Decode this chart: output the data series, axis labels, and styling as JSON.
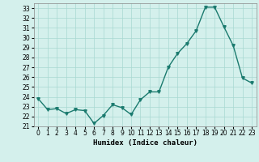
{
  "xlabel": "Humidex (Indice chaleur)",
  "x": [
    0,
    1,
    2,
    3,
    4,
    5,
    6,
    7,
    8,
    9,
    10,
    11,
    12,
    13,
    14,
    15,
    16,
    17,
    18,
    19,
    20,
    21,
    22,
    23
  ],
  "y": [
    23.8,
    22.7,
    22.8,
    22.3,
    22.7,
    22.6,
    21.3,
    22.1,
    23.2,
    22.9,
    22.2,
    23.7,
    24.5,
    24.5,
    27.0,
    28.4,
    29.4,
    30.7,
    33.1,
    33.1,
    31.1,
    29.2,
    25.9,
    25.4
  ],
  "line_color": "#1a7a6e",
  "marker": "v",
  "marker_size": 2.5,
  "bg_color": "#d4f0ec",
  "grid_color": "#a8d8d2",
  "ylim": [
    21,
    33.5
  ],
  "yticks": [
    21,
    22,
    23,
    24,
    25,
    26,
    27,
    28,
    29,
    30,
    31,
    32,
    33
  ],
  "xlim": [
    -0.5,
    23.5
  ],
  "tick_fontsize": 5.5,
  "label_fontsize": 6.5,
  "line_width": 1.0
}
